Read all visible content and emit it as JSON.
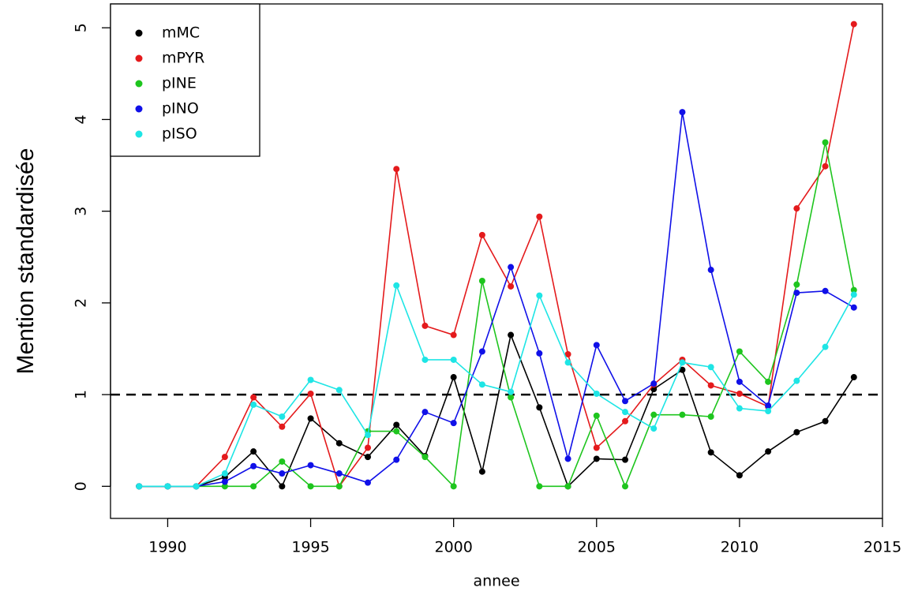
{
  "chart_data": {
    "type": "line",
    "xlabel": "annee",
    "ylabel": "Mention standardisée",
    "x": [
      1989,
      1990,
      1991,
      1992,
      1993,
      1994,
      1995,
      1996,
      1997,
      1998,
      1999,
      2000,
      2001,
      2002,
      2003,
      2004,
      2005,
      2006,
      2007,
      2008,
      2009,
      2010,
      2011,
      2012,
      2013,
      2014
    ],
    "xlim": [
      1988,
      2015
    ],
    "xticks": [
      1990,
      1995,
      2000,
      2005,
      2010,
      2015
    ],
    "ylim": [
      -0.35,
      5.26
    ],
    "yticks": [
      0,
      1,
      2,
      3,
      4,
      5
    ],
    "hline": 1,
    "legend": "top-left",
    "series": [
      {
        "name": "mMC",
        "color": "#000000",
        "values": [
          0,
          0,
          0,
          0.1,
          0.38,
          0,
          0.74,
          0.47,
          0.32,
          0.67,
          0.33,
          1.19,
          0.16,
          1.65,
          0.86,
          0,
          0.3,
          0.29,
          1.06,
          1.27,
          0.37,
          0.12,
          0.38,
          0.59,
          0.71,
          1.19
        ]
      },
      {
        "name": "mPYR",
        "color": "#e41a1c",
        "values": [
          0,
          0,
          0,
          0.32,
          0.97,
          0.65,
          1.01,
          0,
          0.42,
          3.46,
          1.75,
          1.65,
          2.74,
          2.18,
          2.94,
          1.44,
          0.42,
          0.71,
          1.11,
          1.38,
          1.1,
          1.01,
          0.87,
          3.03,
          3.49,
          5.04
        ]
      },
      {
        "name": "pINE",
        "color": "#1ec51e",
        "values": [
          0,
          0,
          0,
          0,
          0,
          0.27,
          0,
          0,
          0.6,
          0.6,
          0.32,
          0,
          2.24,
          0.97,
          0,
          0,
          0.77,
          0,
          0.78,
          0.78,
          0.76,
          1.47,
          1.14,
          2.2,
          3.75,
          2.14
        ]
      },
      {
        "name": "pINO",
        "color": "#1010e8",
        "values": [
          0,
          0,
          0,
          0.05,
          0.22,
          0.14,
          0.23,
          0.14,
          0.04,
          0.29,
          0.81,
          0.69,
          1.47,
          2.39,
          1.45,
          0.3,
          1.54,
          0.93,
          1.12,
          4.08,
          2.36,
          1.14,
          0.88,
          2.11,
          2.13,
          1.95
        ]
      },
      {
        "name": "pISO",
        "color": "#1ee5e5",
        "values": [
          0,
          0,
          0,
          0.14,
          0.89,
          0.76,
          1.16,
          1.05,
          0.56,
          2.19,
          1.38,
          1.38,
          1.11,
          1.03,
          2.08,
          1.35,
          1.01,
          0.81,
          0.63,
          1.35,
          1.3,
          0.85,
          0.82,
          1.15,
          1.52,
          2.09
        ]
      }
    ]
  }
}
